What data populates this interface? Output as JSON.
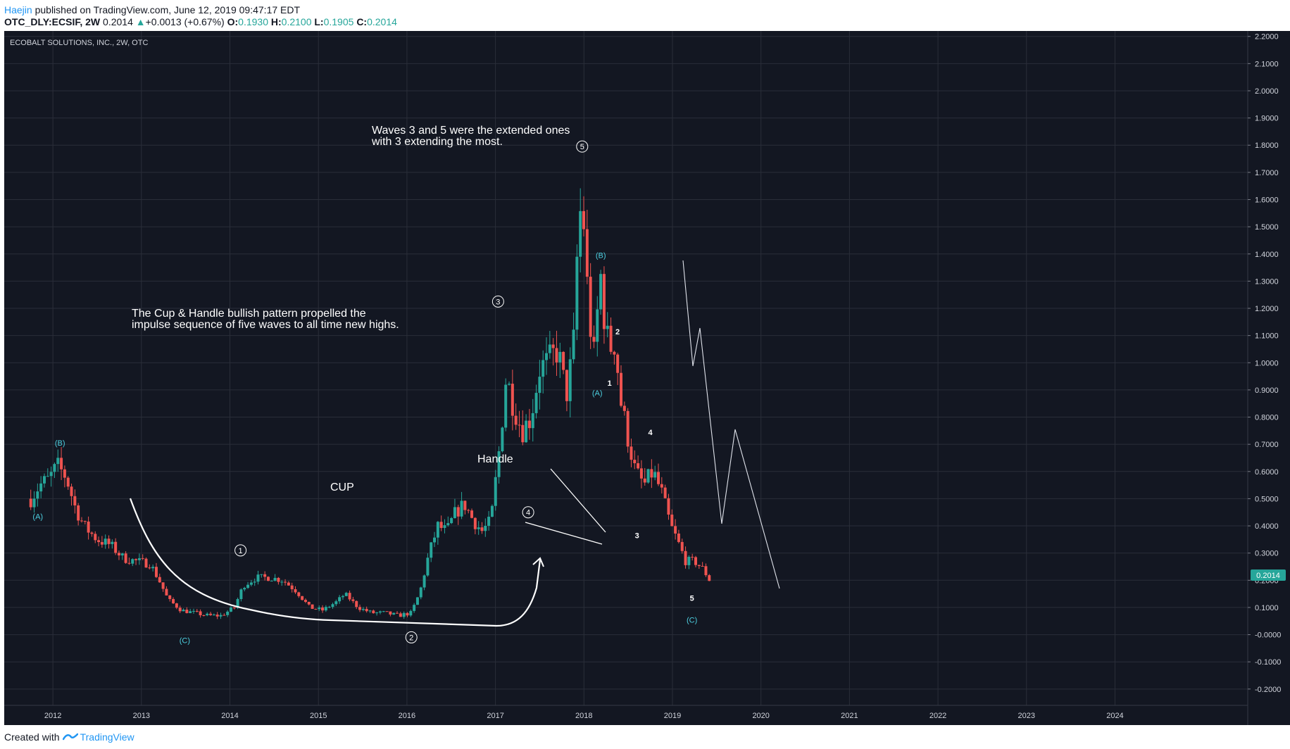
{
  "header": {
    "publisher_user": "Haejin",
    "published_text": " published on TradingView.com, June 12, 2019 09:47:17 EDT",
    "symbol": "OTC_DLY:ECSIF, 2W",
    "price": "0.2014",
    "change": "+0.0013 (+0.67%)",
    "open_label": "O:",
    "open": "0.1930",
    "high_label": "H:",
    "high": "0.2100",
    "low_label": "L:",
    "low": "0.1905",
    "close_label": "C:",
    "close": "0.2014"
  },
  "legend_title": "ECOBALT SOLUTIONS, INC., 2W, OTC",
  "price_tag": "0.2014",
  "footer": {
    "created_with": "Created with",
    "brand": "TradingView"
  },
  "colors": {
    "background": "#131722",
    "up": "#26a69a",
    "down": "#ef5350",
    "wave_cyan": "#4dd0e1",
    "price_tag": "#26a69a"
  },
  "annotations": {
    "note_top_line1": "Waves 3 and 5 were the extended ones",
    "note_top_line2": "with 3 extending the most.",
    "note_left_line1": "The Cup & Handle bullish pattern propelled the",
    "note_left_line2": "impulse sequence of five waves to all time new highs.",
    "cup": "CUP",
    "handle": "Handle"
  },
  "chart_data": {
    "type": "candlestick",
    "title": "ECOBALT SOLUTIONS, INC., 2W, OTC",
    "y_ticks": [
      "2.2000",
      "2.1000",
      "2.0000",
      "1.9000",
      "1.8000",
      "1.7000",
      "1.6000",
      "1.5000",
      "1.4000",
      "1.3000",
      "1.2000",
      "1.1000",
      "1.0000",
      "0.9000",
      "0.8000",
      "0.7000",
      "0.6000",
      "0.5000",
      "0.4000",
      "0.3000",
      "0.2000",
      "0.1000",
      "-0.0000",
      "-0.1000",
      "-0.2000"
    ],
    "x_ticks": [
      "2012",
      "2013",
      "2014",
      "2015",
      "2016",
      "2017",
      "2018",
      "2019",
      "2020",
      "2021",
      "2022",
      "2023",
      "2024"
    ],
    "ylim": [
      -0.26,
      2.22
    ],
    "xlim": [
      2011.45,
      2025.5
    ],
    "grid": true,
    "price_path": [
      [
        2011.75,
        0.5
      ],
      [
        2011.85,
        0.55
      ],
      [
        2011.95,
        0.57
      ],
      [
        2012.05,
        0.62
      ],
      [
        2012.15,
        0.58
      ],
      [
        2012.25,
        0.47
      ],
      [
        2012.35,
        0.4
      ],
      [
        2012.5,
        0.35
      ],
      [
        2012.65,
        0.33
      ],
      [
        2012.8,
        0.28
      ],
      [
        2012.95,
        0.27
      ],
      [
        2013.1,
        0.26
      ],
      [
        2013.2,
        0.2
      ],
      [
        2013.3,
        0.13
      ],
      [
        2013.45,
        0.09
      ],
      [
        2013.6,
        0.08
      ],
      [
        2013.75,
        0.07
      ],
      [
        2013.9,
        0.07
      ],
      [
        2014.05,
        0.1
      ],
      [
        2014.15,
        0.18
      ],
      [
        2014.3,
        0.21
      ],
      [
        2014.45,
        0.21
      ],
      [
        2014.6,
        0.2
      ],
      [
        2014.75,
        0.16
      ],
      [
        2014.9,
        0.1
      ],
      [
        2015.05,
        0.09
      ],
      [
        2015.2,
        0.12
      ],
      [
        2015.3,
        0.15
      ],
      [
        2015.45,
        0.1
      ],
      [
        2015.6,
        0.08
      ],
      [
        2015.75,
        0.08
      ],
      [
        2015.9,
        0.07
      ],
      [
        2016.05,
        0.08
      ],
      [
        2016.15,
        0.16
      ],
      [
        2016.25,
        0.3
      ],
      [
        2016.35,
        0.4
      ],
      [
        2016.45,
        0.38
      ],
      [
        2016.55,
        0.45
      ],
      [
        2016.65,
        0.48
      ],
      [
        2016.75,
        0.42
      ],
      [
        2016.85,
        0.38
      ],
      [
        2016.95,
        0.42
      ],
      [
        2017.05,
        0.7
      ],
      [
        2017.12,
        0.95
      ],
      [
        2017.2,
        0.85
      ],
      [
        2017.3,
        0.75
      ],
      [
        2017.4,
        0.8
      ],
      [
        2017.5,
        0.98
      ],
      [
        2017.6,
        1.0
      ],
      [
        2017.7,
        1.05
      ],
      [
        2017.8,
        0.88
      ],
      [
        2017.88,
        1.05
      ],
      [
        2017.93,
        1.45
      ],
      [
        2017.98,
        1.62
      ],
      [
        2018.05,
        1.2
      ],
      [
        2018.12,
        1.0
      ],
      [
        2018.18,
        1.35
      ],
      [
        2018.22,
        1.2
      ],
      [
        2018.28,
        1.05
      ],
      [
        2018.35,
        1.08
      ],
      [
        2018.42,
        0.85
      ],
      [
        2018.5,
        0.72
      ],
      [
        2018.58,
        0.6
      ],
      [
        2018.68,
        0.55
      ],
      [
        2018.78,
        0.6
      ],
      [
        2018.88,
        0.52
      ],
      [
        2018.98,
        0.4
      ],
      [
        2019.05,
        0.35
      ],
      [
        2019.15,
        0.27
      ],
      [
        2019.25,
        0.27
      ],
      [
        2019.35,
        0.24
      ],
      [
        2019.42,
        0.2
      ]
    ],
    "wave_labels_circled": [
      {
        "label": "1",
        "x": 2014.12,
        "y": 0.31
      },
      {
        "label": "2",
        "x": 2016.05,
        "y": -0.01
      },
      {
        "label": "3",
        "x": 2017.03,
        "y": 1.225
      },
      {
        "label": "4",
        "x": 2017.37,
        "y": 0.45
      },
      {
        "label": "5",
        "x": 2017.98,
        "y": 1.795
      }
    ],
    "wave_labels_corrective": [
      {
        "label": "(A)",
        "x": 2011.83,
        "y": 0.435
      },
      {
        "label": "(B)",
        "x": 2012.08,
        "y": 0.705
      },
      {
        "label": "(C)",
        "x": 2013.49,
        "y": -0.02
      },
      {
        "label": "(A)",
        "x": 2018.15,
        "y": 0.89
      },
      {
        "label": "(B)",
        "x": 2018.19,
        "y": 1.395
      },
      {
        "label": "(C)",
        "x": 2019.22,
        "y": 0.055
      }
    ],
    "wave_labels_minor": [
      {
        "label": "1",
        "x": 2018.29,
        "y": 0.925
      },
      {
        "label": "2",
        "x": 2018.38,
        "y": 1.115
      },
      {
        "label": "3",
        "x": 2018.6,
        "y": 0.365
      },
      {
        "label": "4",
        "x": 2018.75,
        "y": 0.745
      },
      {
        "label": "5",
        "x": 2019.22,
        "y": 0.135
      }
    ]
  }
}
